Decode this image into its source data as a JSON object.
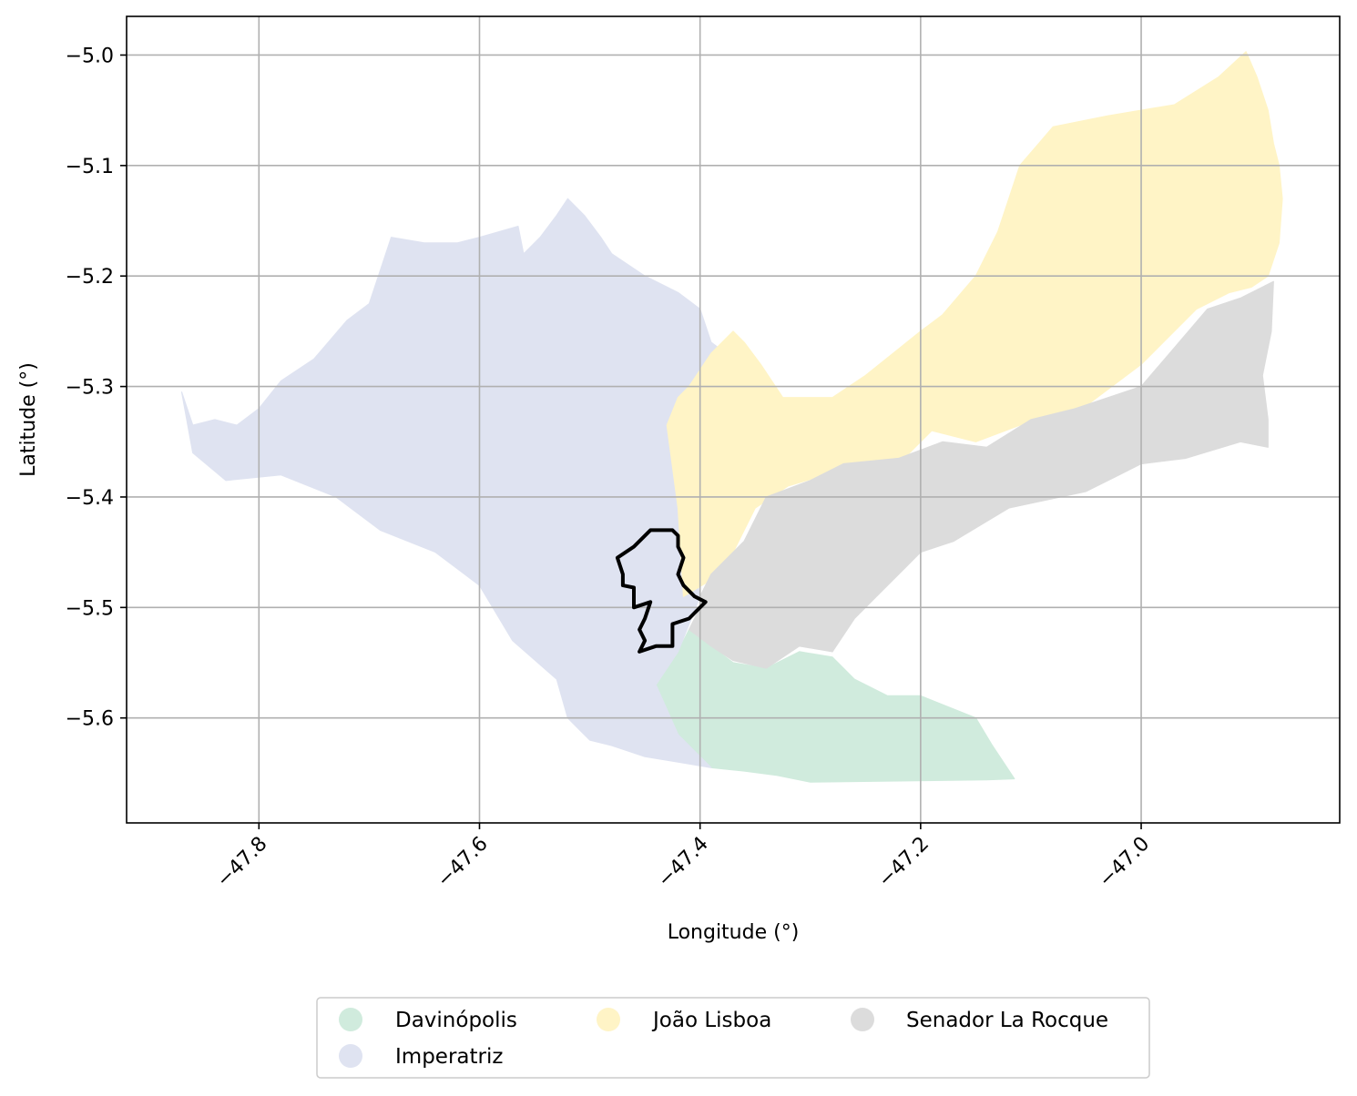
{
  "chart_data": {
    "type": "map",
    "xlabel": "Longitude (°)",
    "ylabel": "Latitude (°)",
    "xlim": [
      -47.92,
      -46.82
    ],
    "ylim": [
      -5.695,
      -4.965
    ],
    "grid": true,
    "x_ticks": [
      -47.8,
      -47.6,
      -47.4,
      -47.2,
      -47.0
    ],
    "x_tick_labels": [
      "−47.8",
      "−47.6",
      "−47.4",
      "−47.2",
      "−47.0"
    ],
    "y_ticks": [
      -5.0,
      -5.1,
      -5.2,
      -5.3,
      -5.4,
      -5.5,
      -5.6
    ],
    "y_tick_labels": [
      "−5.0",
      "−5.1",
      "−5.2",
      "−5.3",
      "−5.4",
      "−5.5",
      "−5.6"
    ],
    "legend_position": "bottom-center",
    "regions": [
      {
        "name": "Davinópolis",
        "color": "#d0ebdd",
        "polygon": [
          [
            -47.42,
            -5.54
          ],
          [
            -47.41,
            -5.52
          ],
          [
            -47.39,
            -5.535
          ],
          [
            -47.37,
            -5.55
          ],
          [
            -47.34,
            -5.555
          ],
          [
            -47.31,
            -5.54
          ],
          [
            -47.28,
            -5.545
          ],
          [
            -47.26,
            -5.565
          ],
          [
            -47.23,
            -5.58
          ],
          [
            -47.2,
            -5.58
          ],
          [
            -47.175,
            -5.59
          ],
          [
            -47.15,
            -5.6
          ],
          [
            -47.135,
            -5.625
          ],
          [
            -47.115,
            -5.655
          ],
          [
            -47.14,
            -5.656
          ],
          [
            -47.3,
            -5.658
          ],
          [
            -47.33,
            -5.652
          ],
          [
            -47.36,
            -5.648
          ],
          [
            -47.39,
            -5.645
          ],
          [
            -47.42,
            -5.615
          ],
          [
            -47.44,
            -5.57
          ]
        ]
      },
      {
        "name": "Imperatriz",
        "color": "#dfe3f1",
        "polygon": [
          [
            -47.87,
            -5.305
          ],
          [
            -47.86,
            -5.335
          ],
          [
            -47.84,
            -5.33
          ],
          [
            -47.82,
            -5.335
          ],
          [
            -47.8,
            -5.32
          ],
          [
            -47.78,
            -5.295
          ],
          [
            -47.75,
            -5.275
          ],
          [
            -47.72,
            -5.24
          ],
          [
            -47.7,
            -5.225
          ],
          [
            -47.69,
            -5.195
          ],
          [
            -47.68,
            -5.165
          ],
          [
            -47.65,
            -5.17
          ],
          [
            -47.62,
            -5.17
          ],
          [
            -47.6,
            -5.165
          ],
          [
            -47.565,
            -5.155
          ],
          [
            -47.56,
            -5.18
          ],
          [
            -47.545,
            -5.165
          ],
          [
            -47.53,
            -5.145
          ],
          [
            -47.52,
            -5.13
          ],
          [
            -47.505,
            -5.145
          ],
          [
            -47.49,
            -5.165
          ],
          [
            -47.48,
            -5.18
          ],
          [
            -47.45,
            -5.2
          ],
          [
            -47.42,
            -5.215
          ],
          [
            -47.4,
            -5.23
          ],
          [
            -47.39,
            -5.26
          ],
          [
            -47.37,
            -5.275
          ],
          [
            -47.38,
            -5.295
          ],
          [
            -47.41,
            -5.31
          ],
          [
            -47.43,
            -5.34
          ],
          [
            -47.42,
            -5.4
          ],
          [
            -47.4,
            -5.49
          ],
          [
            -47.42,
            -5.54
          ],
          [
            -47.44,
            -5.57
          ],
          [
            -47.42,
            -5.615
          ],
          [
            -47.39,
            -5.645
          ],
          [
            -47.42,
            -5.64
          ],
          [
            -47.45,
            -5.635
          ],
          [
            -47.48,
            -5.625
          ],
          [
            -47.5,
            -5.62
          ],
          [
            -47.52,
            -5.6
          ],
          [
            -47.53,
            -5.565
          ],
          [
            -47.57,
            -5.53
          ],
          [
            -47.6,
            -5.48
          ],
          [
            -47.64,
            -5.45
          ],
          [
            -47.69,
            -5.43
          ],
          [
            -47.73,
            -5.4
          ],
          [
            -47.78,
            -5.38
          ],
          [
            -47.83,
            -5.385
          ],
          [
            -47.86,
            -5.36
          ]
        ]
      },
      {
        "name": "João Lisboa",
        "color": "#fff4c6",
        "polygon": [
          [
            -47.43,
            -5.335
          ],
          [
            -47.42,
            -5.31
          ],
          [
            -47.41,
            -5.3
          ],
          [
            -47.39,
            -5.27
          ],
          [
            -47.37,
            -5.25
          ],
          [
            -47.36,
            -5.26
          ],
          [
            -47.345,
            -5.28
          ],
          [
            -47.325,
            -5.31
          ],
          [
            -47.28,
            -5.31
          ],
          [
            -47.25,
            -5.29
          ],
          [
            -47.2,
            -5.25
          ],
          [
            -47.18,
            -5.235
          ],
          [
            -47.15,
            -5.2
          ],
          [
            -47.13,
            -5.16
          ],
          [
            -47.12,
            -5.13
          ],
          [
            -47.11,
            -5.1
          ],
          [
            -47.08,
            -5.065
          ],
          [
            -47.03,
            -5.055
          ],
          [
            -46.97,
            -5.045
          ],
          [
            -46.93,
            -5.02
          ],
          [
            -46.905,
            -4.997
          ],
          [
            -46.895,
            -5.02
          ],
          [
            -46.885,
            -5.05
          ],
          [
            -46.88,
            -5.08
          ],
          [
            -46.875,
            -5.1
          ],
          [
            -46.872,
            -5.13
          ],
          [
            -46.875,
            -5.17
          ],
          [
            -46.885,
            -5.2
          ],
          [
            -46.9,
            -5.21
          ],
          [
            -46.92,
            -5.215
          ],
          [
            -46.95,
            -5.23
          ],
          [
            -46.98,
            -5.26
          ],
          [
            -47.0,
            -5.28
          ],
          [
            -47.04,
            -5.31
          ],
          [
            -47.06,
            -5.325
          ],
          [
            -47.11,
            -5.335
          ],
          [
            -47.15,
            -5.35
          ],
          [
            -47.19,
            -5.34
          ],
          [
            -47.22,
            -5.37
          ],
          [
            -47.27,
            -5.375
          ],
          [
            -47.32,
            -5.39
          ],
          [
            -47.35,
            -5.41
          ],
          [
            -47.37,
            -5.45
          ],
          [
            -47.39,
            -5.475
          ],
          [
            -47.415,
            -5.49
          ],
          [
            -47.42,
            -5.41
          ]
        ]
      },
      {
        "name": "Senador La Rocque",
        "color": "#dcdcdc",
        "polygon": [
          [
            -47.4,
            -5.49
          ],
          [
            -47.39,
            -5.47
          ],
          [
            -47.36,
            -5.44
          ],
          [
            -47.34,
            -5.4
          ],
          [
            -47.3,
            -5.385
          ],
          [
            -47.27,
            -5.37
          ],
          [
            -47.22,
            -5.365
          ],
          [
            -47.18,
            -5.35
          ],
          [
            -47.14,
            -5.355
          ],
          [
            -47.1,
            -5.33
          ],
          [
            -47.06,
            -5.32
          ],
          [
            -47.0,
            -5.3
          ],
          [
            -46.97,
            -5.265
          ],
          [
            -46.94,
            -5.23
          ],
          [
            -46.91,
            -5.22
          ],
          [
            -46.88,
            -5.205
          ],
          [
            -46.882,
            -5.25
          ],
          [
            -46.89,
            -5.29
          ],
          [
            -46.885,
            -5.33
          ],
          [
            -46.885,
            -5.355
          ],
          [
            -46.91,
            -5.35
          ],
          [
            -46.96,
            -5.365
          ],
          [
            -47.0,
            -5.37
          ],
          [
            -47.02,
            -5.38
          ],
          [
            -47.05,
            -5.395
          ],
          [
            -47.12,
            -5.41
          ],
          [
            -47.17,
            -5.44
          ],
          [
            -47.2,
            -5.45
          ],
          [
            -47.23,
            -5.48
          ],
          [
            -47.26,
            -5.51
          ],
          [
            -47.28,
            -5.54
          ],
          [
            -47.31,
            -5.535
          ],
          [
            -47.34,
            -5.555
          ],
          [
            -47.37,
            -5.548
          ],
          [
            -47.39,
            -5.535
          ],
          [
            -47.41,
            -5.52
          ],
          [
            -47.4,
            -5.5
          ]
        ]
      }
    ],
    "highlight_outline": {
      "color": "#000000",
      "polygon": [
        [
          -47.425,
          -5.43
        ],
        [
          -47.445,
          -5.43
        ],
        [
          -47.46,
          -5.445
        ],
        [
          -47.475,
          -5.455
        ],
        [
          -47.47,
          -5.47
        ],
        [
          -47.47,
          -5.48
        ],
        [
          -47.46,
          -5.482
        ],
        [
          -47.46,
          -5.5
        ],
        [
          -47.445,
          -5.495
        ],
        [
          -47.45,
          -5.51
        ],
        [
          -47.455,
          -5.52
        ],
        [
          -47.45,
          -5.53
        ],
        [
          -47.455,
          -5.54
        ],
        [
          -47.44,
          -5.535
        ],
        [
          -47.425,
          -5.535
        ],
        [
          -47.425,
          -5.515
        ],
        [
          -47.41,
          -5.51
        ],
        [
          -47.405,
          -5.505
        ],
        [
          -47.395,
          -5.495
        ],
        [
          -47.405,
          -5.49
        ],
        [
          -47.415,
          -5.48
        ],
        [
          -47.42,
          -5.47
        ],
        [
          -47.415,
          -5.455
        ],
        [
          -47.42,
          -5.445
        ],
        [
          -47.42,
          -5.435
        ]
      ]
    }
  },
  "legend": {
    "items": [
      {
        "label": "Davinópolis",
        "color": "#d0ebdd"
      },
      {
        "label": "Imperatriz",
        "color": "#dfe3f1"
      },
      {
        "label": "João Lisboa",
        "color": "#fff4c6"
      },
      {
        "label": "Senador La Rocque",
        "color": "#dcdcdc"
      }
    ]
  }
}
